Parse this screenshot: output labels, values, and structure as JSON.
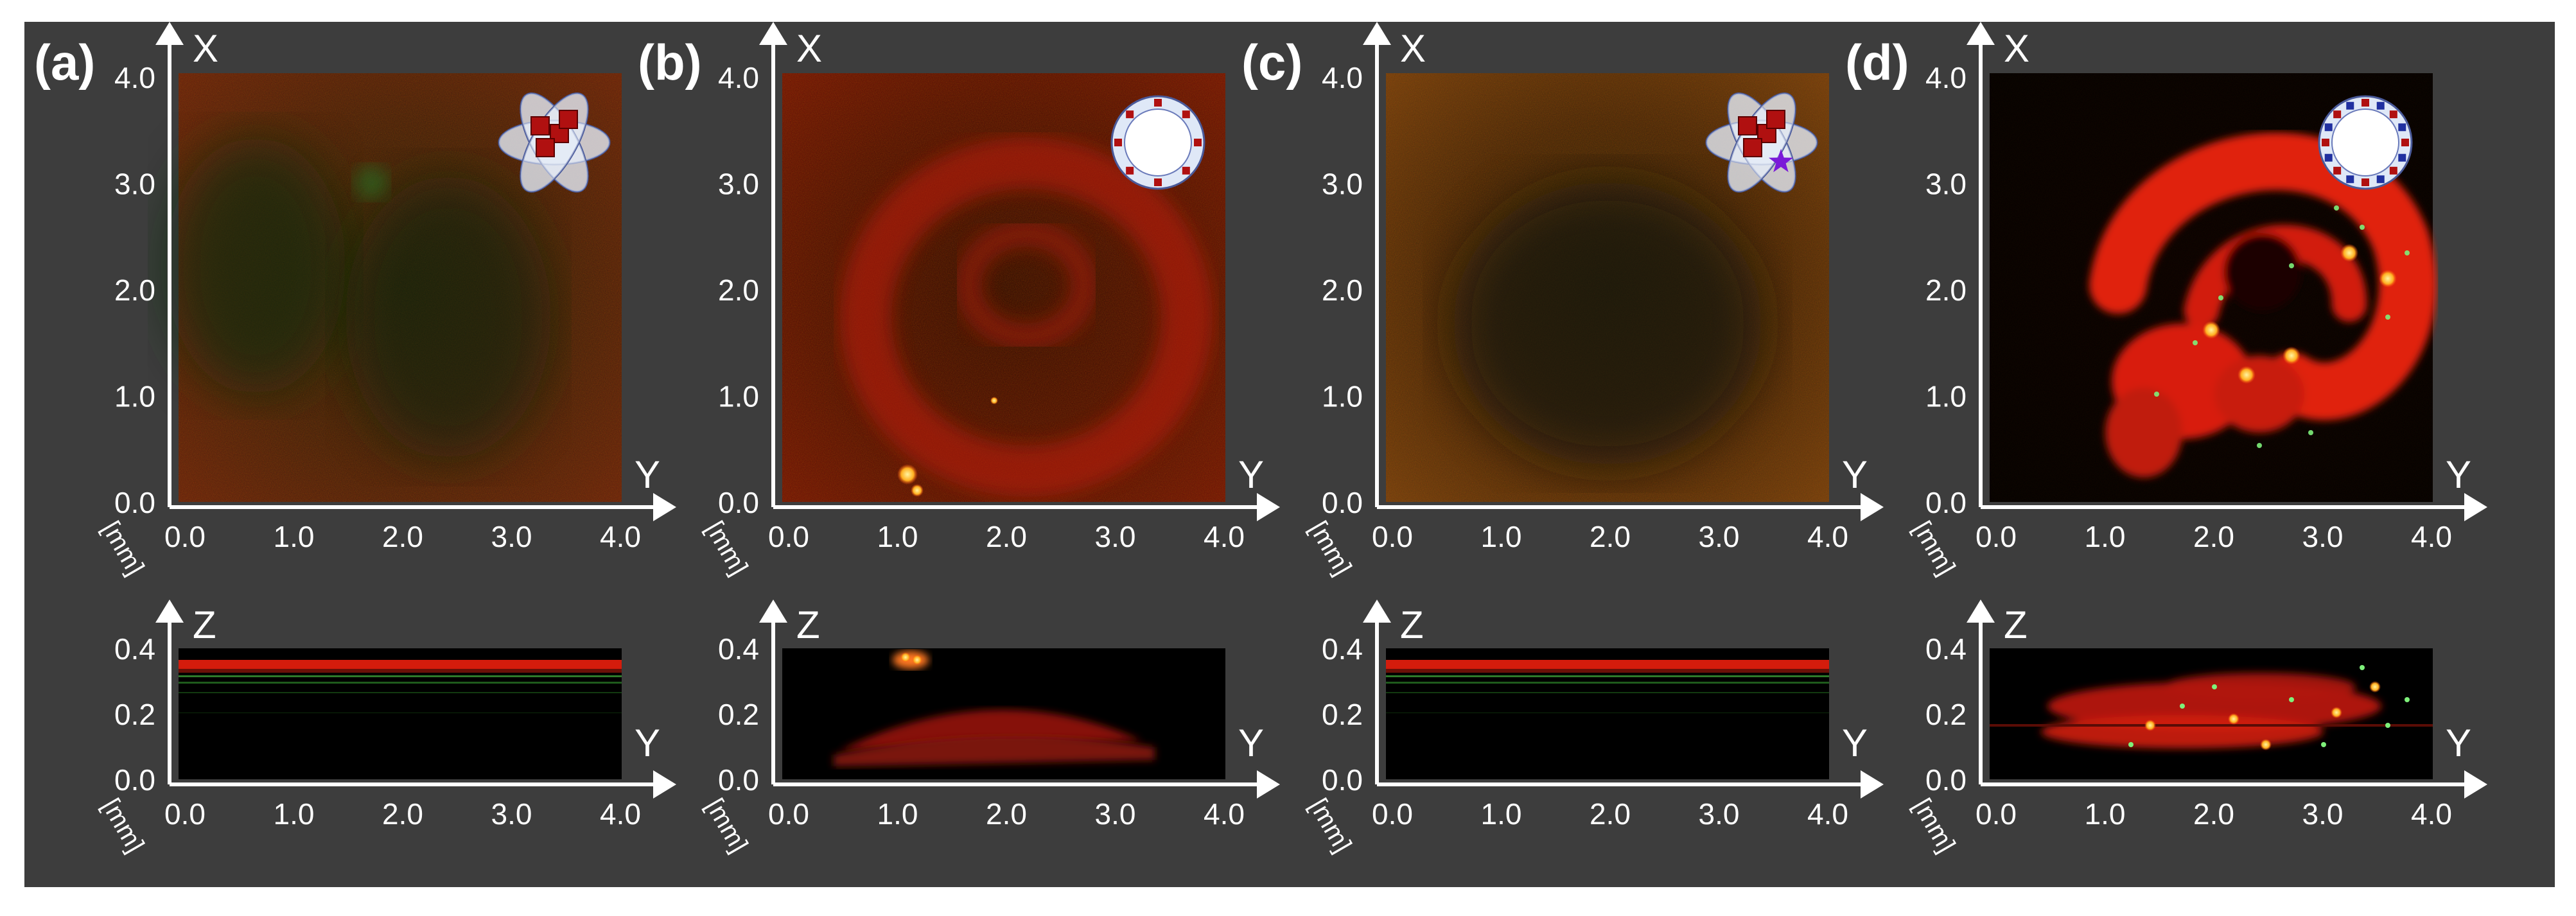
{
  "panels": [
    {
      "label": "(a)",
      "xy_image": "XY projection: dark red/green diffuse texture, no distinct structure",
      "xz_image": "XZ projection: thin red surface band near top with faint green lines below",
      "inset_icon": "lipid-nanoparticle-with-red-cubes-icon"
    },
    {
      "label": "(b)",
      "xy_image": "XY projection: faint red ring-shaped structure, two small yellow spots near bottom",
      "xz_image": "XZ projection: dome-shaped red structure near bottom, small yellow cluster above",
      "inset_icon": "liposome-ring-red-dots-icon"
    },
    {
      "label": "(c)",
      "xy_image": "XY projection: uniform dark red/green speckle",
      "xz_image": "XZ projection: thin red surface band with green lines below",
      "inset_icon": "lipid-nanoparticle-with-red-cubes-and-purple-star-icon"
    },
    {
      "label": "(d)",
      "xy_image": "XY projection: bright red curled spiral structure with yellow and green spots",
      "xz_image": "XZ projection: bright red layered structure with green and yellow spots",
      "inset_icon": "liposome-ring-red-and-blue-dots-icon"
    }
  ],
  "axes": {
    "xy_vertical_label": "X",
    "xz_vertical_label": "Z",
    "horizontal_label": "Y",
    "unit_label": "[mm]",
    "xy_vertical_ticks": [
      "0.0",
      "1.0",
      "2.0",
      "3.0",
      "4.0"
    ],
    "xz_vertical_ticks": [
      "0.0",
      "0.2",
      "0.4"
    ],
    "horizontal_ticks": [
      "0.0",
      "1.0",
      "2.0",
      "3.0",
      "4.0"
    ]
  },
  "colors": {
    "background": "#3d3d3d",
    "text": "#ffffff",
    "signal_red": "#d11a0c",
    "signal_green": "#3aa33a",
    "signal_yellow": "#ffd84a"
  }
}
